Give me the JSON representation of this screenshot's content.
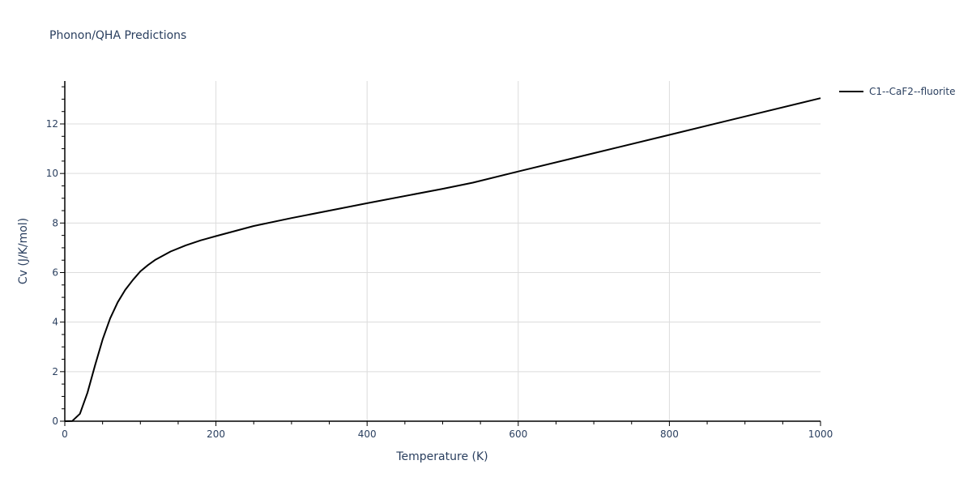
{
  "chart_data": {
    "type": "line",
    "title": "Phonon/QHA Predictions",
    "xlabel": "Temperature (K)",
    "ylabel": "Cv (J/K/mol)",
    "xlim": [
      0,
      1000
    ],
    "ylim": [
      0,
      13.7
    ],
    "x_ticks": [
      0,
      200,
      400,
      600,
      800,
      1000
    ],
    "y_ticks": [
      0,
      2,
      4,
      6,
      8,
      10,
      12
    ],
    "grid": true,
    "legend_position": "top-right outside",
    "series": [
      {
        "name": "C1--CaF2--fluorite",
        "color": "#000000",
        "x": [
          0,
          10,
          20,
          30,
          40,
          50,
          60,
          70,
          80,
          90,
          100,
          110,
          120,
          140,
          160,
          180,
          200,
          250,
          300,
          400,
          500,
          540,
          600,
          700,
          800,
          900,
          1000
        ],
        "y": [
          0,
          0.01,
          0.3,
          1.15,
          2.25,
          3.3,
          4.15,
          4.8,
          5.3,
          5.7,
          6.05,
          6.3,
          6.52,
          6.85,
          7.1,
          7.3,
          7.47,
          7.88,
          8.2,
          8.8,
          9.38,
          9.63,
          10.08,
          10.82,
          11.56,
          12.3,
          13.04
        ]
      }
    ]
  },
  "labels": {
    "title": "Phonon/QHA Predictions",
    "xlabel": "Temperature (K)",
    "ylabel": "Cv (J/K/mol)",
    "legend": "C1--CaF2--fluorite"
  }
}
